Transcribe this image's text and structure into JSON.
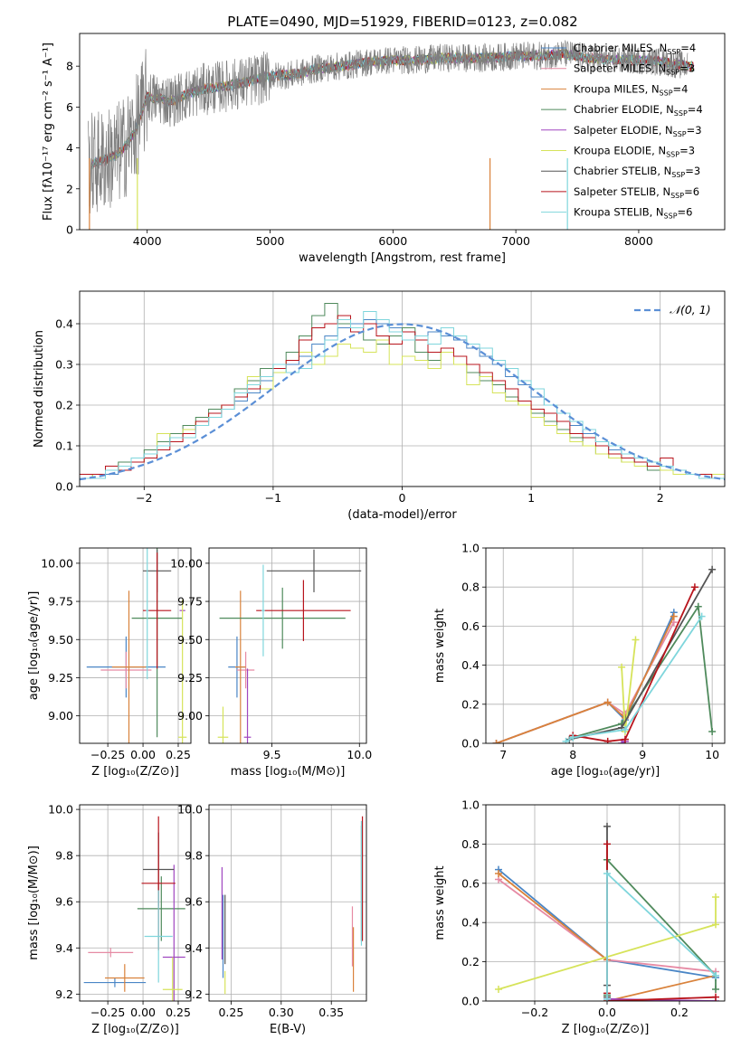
{
  "figure": {
    "title": "PLATE=0490, MJD=51929, FIBERID=0123, z=0.082"
  },
  "legend_models": [
    {
      "label": "Chabrier MILES, N",
      "sub": "SSP",
      "tail": "=4",
      "color": "#4a86c6"
    },
    {
      "label": "Salpeter MILES, N",
      "sub": "SSP",
      "tail": "=3",
      "color": "#e68aa4"
    },
    {
      "label": "Kroupa MILES, N",
      "sub": "SSP",
      "tail": "=4",
      "color": "#d9823b"
    },
    {
      "label": "Chabrier ELODIE, N",
      "sub": "SSP",
      "tail": "=4",
      "color": "#4f8a5c"
    },
    {
      "label": "Salpeter ELODIE, N",
      "sub": "SSP",
      "tail": "=3",
      "color": "#a046c0"
    },
    {
      "label": "Kroupa ELODIE, N",
      "sub": "SSP",
      "tail": "=3",
      "color": "#d6e35a"
    },
    {
      "label": "Chabrier STELIB, N",
      "sub": "SSP",
      "tail": "=3",
      "color": "#555555"
    },
    {
      "label": "Salpeter STELIB, N",
      "sub": "SSP",
      "tail": "=6",
      "color": "#b8141c"
    },
    {
      "label": "Kroupa STELIB, N",
      "sub": "SSP",
      "tail": "=6",
      "color": "#7fd6dc"
    }
  ],
  "colors": {
    "data_gray": "#7f7f7f",
    "normal_curve": "#5b8fd6",
    "grid": "#b0b0b0"
  },
  "chart_data": [
    {
      "id": "spectrum",
      "type": "line",
      "xlabel": "wavelength [Angstrom, rest frame]",
      "ylabel": "Flux [fλ10⁻¹⁷ erg cm⁻² s⁻¹ A⁻¹]",
      "xlim": [
        3450,
        8700
      ],
      "ylim": [
        0,
        9.6
      ],
      "xticks": [
        4000,
        5000,
        6000,
        7000,
        8000
      ],
      "yticks": [
        0,
        2,
        4,
        6,
        8
      ],
      "grid": false,
      "legend": "top-right",
      "continuum": {
        "x": [
          3550,
          3700,
          3800,
          3900,
          4000,
          4200,
          4400,
          4600,
          4800,
          5000,
          5200,
          5400,
          5600,
          5800,
          6000,
          6200,
          6400,
          6600,
          6800,
          7000,
          7200,
          7400,
          7600,
          7800,
          8000,
          8200,
          8400
        ],
        "y": [
          3.2,
          3.5,
          3.9,
          4.8,
          6.5,
          6.3,
          6.8,
          7.0,
          7.2,
          7.5,
          7.6,
          7.9,
          8.0,
          8.2,
          8.3,
          8.3,
          8.4,
          8.4,
          8.4,
          8.5,
          8.5,
          8.6,
          8.4,
          8.3,
          8.3,
          8.2,
          8.0
        ]
      },
      "data_series": {
        "name": "data",
        "x_start": 3520,
        "x_end": 8400
      }
    },
    {
      "id": "residuals",
      "type": "area",
      "xlabel": "(data-model)/error",
      "ylabel": "Normed distribution",
      "xlim": [
        -2.5,
        2.5
      ],
      "ylim": [
        0,
        0.48
      ],
      "xticks": [
        -2,
        -1,
        0,
        1,
        2
      ],
      "yticks": [
        0.0,
        0.1,
        0.2,
        0.3,
        0.4
      ],
      "grid": true,
      "legend": "top-right",
      "reference_label": "𝒩(0, 1)",
      "bin_width": 0.1,
      "histograms": [
        {
          "model": 0,
          "values": [
            0.02,
            0.03,
            0.03,
            0.05,
            0.06,
            0.08,
            0.1,
            0.12,
            0.14,
            0.15,
            0.17,
            0.19,
            0.21,
            0.23,
            0.26,
            0.28,
            0.3,
            0.32,
            0.35,
            0.37,
            0.39,
            0.4,
            0.41,
            0.4,
            0.39,
            0.38,
            0.36,
            0.38,
            0.37,
            0.36,
            0.34,
            0.32,
            0.3,
            0.27,
            0.25,
            0.22,
            0.2,
            0.18,
            0.15,
            0.13,
            0.11,
            0.09,
            0.08,
            0.06,
            0.05,
            0.05,
            0.04,
            0.03,
            0.03,
            0.02
          ]
        },
        {
          "model": 3,
          "values": [
            0.03,
            0.02,
            0.04,
            0.06,
            0.07,
            0.09,
            0.11,
            0.13,
            0.15,
            0.17,
            0.19,
            0.2,
            0.24,
            0.26,
            0.29,
            0.3,
            0.33,
            0.37,
            0.42,
            0.45,
            0.4,
            0.38,
            0.36,
            0.35,
            0.37,
            0.39,
            0.33,
            0.31,
            0.33,
            0.3,
            0.28,
            0.26,
            0.25,
            0.22,
            0.2,
            0.18,
            0.16,
            0.14,
            0.12,
            0.1,
            0.08,
            0.07,
            0.06,
            0.06,
            0.04,
            0.04,
            0.03,
            0.03,
            0.02,
            0.02
          ]
        },
        {
          "model": 5,
          "values": [
            0.02,
            0.03,
            0.04,
            0.05,
            0.06,
            0.07,
            0.13,
            0.12,
            0.14,
            0.16,
            0.18,
            0.2,
            0.22,
            0.27,
            0.24,
            0.28,
            0.31,
            0.33,
            0.3,
            0.32,
            0.35,
            0.34,
            0.33,
            0.36,
            0.3,
            0.32,
            0.31,
            0.29,
            0.33,
            0.3,
            0.25,
            0.27,
            0.23,
            0.21,
            0.2,
            0.17,
            0.15,
            0.13,
            0.11,
            0.1,
            0.08,
            0.07,
            0.06,
            0.05,
            0.05,
            0.04,
            0.03,
            0.03,
            0.02,
            0.03
          ]
        },
        {
          "model": 7,
          "values": [
            0.03,
            0.03,
            0.05,
            0.04,
            0.06,
            0.07,
            0.09,
            0.11,
            0.13,
            0.16,
            0.18,
            0.2,
            0.22,
            0.24,
            0.27,
            0.29,
            0.31,
            0.36,
            0.39,
            0.4,
            0.42,
            0.38,
            0.4,
            0.37,
            0.35,
            0.38,
            0.36,
            0.33,
            0.34,
            0.32,
            0.3,
            0.28,
            0.26,
            0.24,
            0.21,
            0.19,
            0.18,
            0.16,
            0.13,
            0.12,
            0.1,
            0.08,
            0.07,
            0.06,
            0.05,
            0.07,
            0.04,
            0.03,
            0.03,
            0.02
          ]
        },
        {
          "model": 8,
          "values": [
            0.02,
            0.02,
            0.04,
            0.05,
            0.07,
            0.08,
            0.1,
            0.12,
            0.12,
            0.15,
            0.17,
            0.19,
            0.23,
            0.25,
            0.27,
            0.3,
            0.28,
            0.29,
            0.32,
            0.36,
            0.41,
            0.39,
            0.43,
            0.41,
            0.38,
            0.36,
            0.37,
            0.35,
            0.39,
            0.37,
            0.35,
            0.34,
            0.31,
            0.29,
            0.26,
            0.24,
            0.2,
            0.18,
            0.16,
            0.14,
            0.11,
            0.1,
            0.08,
            0.07,
            0.06,
            0.05,
            0.04,
            0.03,
            0.02,
            0.02
          ]
        }
      ]
    },
    {
      "id": "age-vs-Z",
      "type": "scatter",
      "xlabel": "Z [log₁₀(Z/Z⊙)]",
      "ylabel": "age  [log₁₀(age/yr)]",
      "xlim": [
        -0.45,
        0.34
      ],
      "ylim": [
        8.82,
        10.1
      ],
      "xticks": [
        -0.25,
        0.0,
        0.25
      ],
      "yticks": [
        9.0,
        9.25,
        9.5,
        9.75,
        10.0
      ],
      "grid": true,
      "points": [
        {
          "model": 0,
          "x": -0.12,
          "y": 9.32,
          "xerr": 0.28,
          "yerr": 0.2
        },
        {
          "model": 1,
          "x": -0.12,
          "y": 9.3,
          "xerr": 0.18,
          "yerr": 0.12
        },
        {
          "model": 2,
          "x": -0.1,
          "y": 9.32,
          "xerr": 0.12,
          "yerr": 0.5
        },
        {
          "model": 3,
          "x": 0.1,
          "y": 9.64,
          "xerr": 0.18,
          "yerr": 0.78
        },
        {
          "model": 4,
          "x": 0.28,
          "y": 9.69,
          "xerr": 0.02,
          "yerr": 0.0
        },
        {
          "model": 5,
          "x": 0.28,
          "y": 8.86,
          "xerr": 0.03,
          "yerr": 0.9
        },
        {
          "model": 6,
          "x": 0.1,
          "y": 9.95,
          "xerr": 0.1,
          "yerr": 0.14
        },
        {
          "model": 7,
          "x": 0.1,
          "y": 9.69,
          "xerr": 0.1,
          "yerr": 0.38
        },
        {
          "model": 8,
          "x": 0.03,
          "y": 9.69,
          "xerr": 0.01,
          "yerr": 0.45
        }
      ]
    },
    {
      "id": "age-vs-mass",
      "type": "scatter",
      "xlabel": "mass [log₁₀(M/M⊙)]",
      "ylabel": "",
      "xlim": [
        9.14,
        10.04
      ],
      "ylim": [
        8.82,
        10.1
      ],
      "xticks": [
        9.5,
        10.0
      ],
      "yticks": [
        9.0,
        9.25,
        9.5,
        9.75,
        10.0
      ],
      "grid": true,
      "points": [
        {
          "model": 0,
          "x": 9.3,
          "y": 9.32,
          "xerr": 0.05,
          "yerr": 0.2
        },
        {
          "model": 1,
          "x": 9.35,
          "y": 9.3,
          "xerr": 0.05,
          "yerr": 0.12
        },
        {
          "model": 2,
          "x": 9.32,
          "y": 9.32,
          "xerr": 0.03,
          "yerr": 0.5
        },
        {
          "model": 3,
          "x": 9.56,
          "y": 9.64,
          "xerr": 0.36,
          "yerr": 0.2
        },
        {
          "model": 4,
          "x": 9.36,
          "y": 8.86,
          "xerr": 0.02,
          "yerr": 0.45
        },
        {
          "model": 5,
          "x": 9.22,
          "y": 8.86,
          "xerr": 0.03,
          "yerr": 0.2
        },
        {
          "model": 6,
          "x": 9.74,
          "y": 9.95,
          "xerr": 0.27,
          "yerr": 0.14
        },
        {
          "model": 7,
          "x": 9.68,
          "y": 9.69,
          "xerr": 0.27,
          "yerr": 0.2
        },
        {
          "model": 8,
          "x": 9.45,
          "y": 9.69,
          "xerr": 0.01,
          "yerr": 0.3
        }
      ]
    },
    {
      "id": "weight-vs-age",
      "type": "line",
      "xlabel": "age  [log₁₀(age/yr)]",
      "ylabel": "mass weight",
      "xlim": [
        6.75,
        10.18
      ],
      "ylim": [
        0,
        1.0
      ],
      "xticks": [
        7,
        8,
        9,
        10
      ],
      "yticks": [
        0.0,
        0.2,
        0.4,
        0.6,
        0.8,
        1.0
      ],
      "grid": true,
      "series": [
        {
          "model": 0,
          "x": [
            6.9,
            8.5,
            8.75,
            9.45
          ],
          "y": [
            0.0,
            0.21,
            0.12,
            0.67
          ]
        },
        {
          "model": 1,
          "x": [
            6.9,
            8.5,
            8.75,
            9.45
          ],
          "y": [
            0.0,
            0.21,
            0.15,
            0.62
          ]
        },
        {
          "model": 2,
          "x": [
            6.9,
            8.5,
            8.75,
            9.45
          ],
          "y": [
            0.0,
            0.21,
            0.13,
            0.65
          ]
        },
        {
          "model": 3,
          "x": [
            8.0,
            8.7,
            9.8,
            10.0
          ],
          "y": [
            0.03,
            0.1,
            0.7,
            0.06
          ]
        },
        {
          "model": 4,
          "x": [
            8.7,
            8.75
          ],
          "y": [
            0.0,
            0.01
          ]
        },
        {
          "model": 5,
          "x": [
            8.7,
            8.75,
            8.9
          ],
          "y": [
            0.39,
            0.06,
            0.53
          ]
        },
        {
          "model": 6,
          "x": [
            7.95,
            8.7,
            10.0
          ],
          "y": [
            0.02,
            0.08,
            0.89
          ]
        },
        {
          "model": 7,
          "x": [
            8.0,
            8.5,
            8.75,
            9.75
          ],
          "y": [
            0.04,
            0.01,
            0.02,
            0.8
          ]
        },
        {
          "model": 8,
          "x": [
            7.9,
            8.0,
            8.75,
            9.85
          ],
          "y": [
            0.01,
            0.03,
            0.07,
            0.65
          ]
        }
      ]
    },
    {
      "id": "mass-vs-Z",
      "type": "scatter",
      "xlabel": "Z [log₁₀(Z/Z⊙)]",
      "ylabel": "mass [log₁₀(M/M⊙)]",
      "xlim": [
        -0.45,
        0.34
      ],
      "ylim": [
        9.17,
        10.02
      ],
      "xticks": [
        -0.25,
        0.0,
        0.25
      ],
      "yticks": [
        9.2,
        9.4,
        9.6,
        9.8,
        10.0
      ],
      "grid": true,
      "points": [
        {
          "model": 0,
          "x": -0.2,
          "y": 9.25,
          "xerr": 0.22,
          "yerr": 0.02
        },
        {
          "model": 1,
          "x": -0.23,
          "y": 9.38,
          "xerr": 0.16,
          "yerr": 0.02
        },
        {
          "model": 2,
          "x": -0.13,
          "y": 9.27,
          "xerr": 0.14,
          "yerr": 0.06
        },
        {
          "model": 3,
          "x": 0.13,
          "y": 9.57,
          "xerr": 0.17,
          "yerr": 0.14
        },
        {
          "model": 4,
          "x": 0.22,
          "y": 9.36,
          "xerr": 0.08,
          "yerr": 0.4
        },
        {
          "model": 5,
          "x": 0.21,
          "y": 9.22,
          "xerr": 0.07,
          "yerr": 0.14
        },
        {
          "model": 6,
          "x": 0.11,
          "y": 9.74,
          "xerr": 0.11,
          "yerr": 0.16
        },
        {
          "model": 7,
          "x": 0.11,
          "y": 9.68,
          "xerr": 0.12,
          "yerr": 0.29
        },
        {
          "model": 8,
          "x": 0.11,
          "y": 9.45,
          "xerr": 0.1,
          "yerr": 0.2
        }
      ]
    },
    {
      "id": "mass-vs-EBV",
      "type": "scatter",
      "xlabel": "E(B-V)",
      "ylabel": "",
      "xlim": [
        0.228,
        0.385
      ],
      "ylim": [
        9.17,
        10.02
      ],
      "xticks": [
        0.25,
        0.3,
        0.35
      ],
      "yticks": [
        9.2,
        9.4,
        9.6,
        9.8,
        10.0
      ],
      "grid": true,
      "points": [
        {
          "model": 0,
          "x": 0.242,
          "y": 9.45,
          "xerr": 0.0,
          "yerr": 0.18
        },
        {
          "model": 1,
          "x": 0.371,
          "y": 9.45,
          "xerr": 0.0,
          "yerr": 0.13
        },
        {
          "model": 2,
          "x": 0.372,
          "y": 9.35,
          "xerr": 0.0,
          "yerr": 0.14
        },
        {
          "model": 3,
          "x": 0.38,
          "y": 9.68,
          "xerr": 0.0,
          "yerr": 0.25
        },
        {
          "model": 4,
          "x": 0.241,
          "y": 9.55,
          "xerr": 0.0,
          "yerr": 0.2
        },
        {
          "model": 5,
          "x": 0.244,
          "y": 9.25,
          "xerr": 0.0,
          "yerr": 0.05
        },
        {
          "model": 6,
          "x": 0.244,
          "y": 9.48,
          "xerr": 0.0,
          "yerr": 0.15
        },
        {
          "model": 7,
          "x": 0.381,
          "y": 9.7,
          "xerr": 0.0,
          "yerr": 0.27
        },
        {
          "model": 8,
          "x": 0.38,
          "y": 9.68,
          "xerr": 0.0,
          "yerr": 0.27
        }
      ]
    },
    {
      "id": "weight-vs-Z",
      "type": "line",
      "xlabel": "Z [log₁₀(Z/Z⊙)]",
      "ylabel": "mass weight",
      "xlim": [
        -0.335,
        0.325
      ],
      "ylim": [
        0,
        1.0
      ],
      "xticks": [
        -0.2,
        0.0,
        0.2
      ],
      "yticks": [
        0.0,
        0.2,
        0.4,
        0.6,
        0.8,
        1.0
      ],
      "grid": true,
      "series": [
        {
          "model": 0,
          "x": [
            -0.3,
            0.0,
            0.3
          ],
          "y": [
            0.67,
            0.21,
            0.12
          ]
        },
        {
          "model": 1,
          "x": [
            -0.3,
            0.0,
            0.3
          ],
          "y": [
            0.62,
            0.21,
            0.15
          ]
        },
        {
          "model": 2,
          "x": [
            -0.3,
            0.0,
            0.0,
            0.3
          ],
          "y": [
            0.65,
            0.21,
            0.0,
            0.13
          ]
        },
        {
          "model": 3,
          "x": [
            0.0,
            0.0,
            0.3,
            0.3
          ],
          "y": [
            0.03,
            0.72,
            0.13,
            0.06
          ]
        },
        {
          "model": 4,
          "x": [
            0.0,
            0.3
          ],
          "y": [
            0.01,
            0.0
          ]
        },
        {
          "model": 5,
          "x": [
            -0.3,
            0.3,
            0.3
          ],
          "y": [
            0.06,
            0.39,
            0.53
          ]
        },
        {
          "model": 6,
          "x": [
            0.0,
            0.0,
            0.0
          ],
          "y": [
            0.02,
            0.08,
            0.89
          ]
        },
        {
          "model": 7,
          "x": [
            0.0,
            0.0,
            0.0,
            0.3
          ],
          "y": [
            0.04,
            0.8,
            0.0,
            0.02
          ]
        },
        {
          "model": 8,
          "x": [
            0.0,
            0.0,
            0.3,
            0.3
          ],
          "y": [
            0.01,
            0.65,
            0.13,
            0.13
          ]
        }
      ]
    }
  ]
}
